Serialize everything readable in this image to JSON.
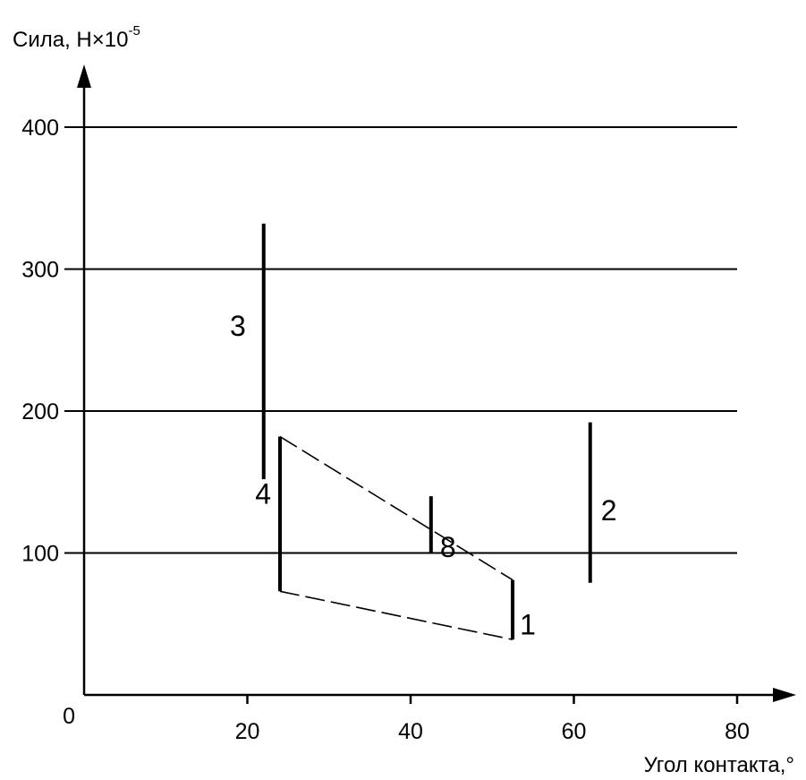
{
  "chart_data": {
    "type": "range",
    "ylabel": "Сила, Н×10",
    "ylabel_exponent": "-5",
    "xlabel": "Угол контакта,°",
    "origin_label": "0",
    "xlim": [
      0,
      80
    ],
    "ylim": [
      0,
      400
    ],
    "x_ticks": [
      "20",
      "40",
      "60",
      "80"
    ],
    "y_ticks": [
      "100",
      "200",
      "300",
      "400"
    ],
    "grid": "horizontal",
    "ranges": [
      {
        "label": "3",
        "x": 22,
        "y_min": 152,
        "y_max": 332
      },
      {
        "label": "4",
        "x": 24,
        "y_min": 73,
        "y_max": 182
      },
      {
        "label": "8",
        "x": 42.5,
        "y_min": 100,
        "y_max": 140
      },
      {
        "label": "2",
        "x": 62,
        "y_min": 79,
        "y_max": 192
      },
      {
        "label": "1",
        "x": 52.5,
        "y_min": 39,
        "y_max": 81
      }
    ],
    "dashed_envelope": [
      {
        "from": [
          24,
          182
        ],
        "to": [
          52.5,
          81
        ]
      },
      {
        "from": [
          24,
          73
        ],
        "to": [
          52.5,
          39
        ]
      }
    ]
  }
}
